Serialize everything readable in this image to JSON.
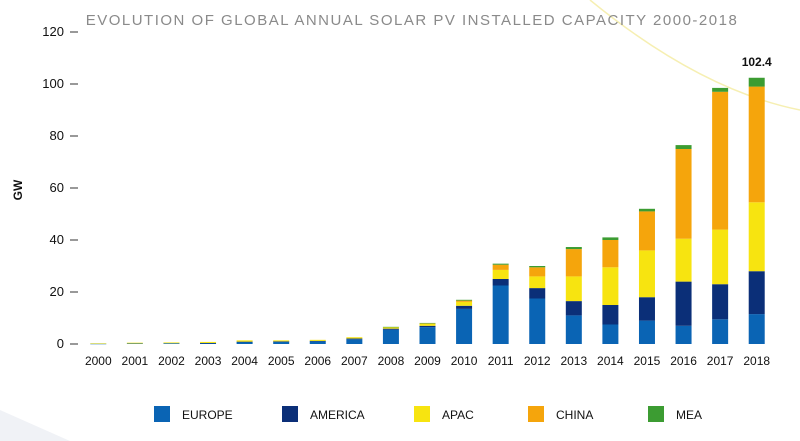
{
  "chart_data": {
    "type": "bar",
    "stacked": true,
    "title": "EVOLUTION OF GLOBAL ANNUAL SOLAR PV INSTALLED CAPACITY 2000-2018",
    "xlabel": "",
    "ylabel": "GW",
    "ylim": [
      0,
      120
    ],
    "yticks": [
      0,
      20,
      40,
      60,
      80,
      100,
      120
    ],
    "grid": false,
    "legend_position": "bottom",
    "categories": [
      "2000",
      "2001",
      "2002",
      "2003",
      "2004",
      "2005",
      "2006",
      "2007",
      "2008",
      "2009",
      "2010",
      "2011",
      "2012",
      "2013",
      "2014",
      "2015",
      "2016",
      "2017",
      "2018"
    ],
    "series": [
      {
        "name": "EUROPE",
        "color": "#0a64b4",
        "values": [
          0.1,
          0.2,
          0.3,
          0.3,
          0.8,
          0.9,
          1.0,
          1.8,
          5.5,
          6.5,
          13.5,
          22.5,
          17.5,
          11.0,
          7.5,
          9.0,
          7.0,
          9.5,
          11.5
        ]
      },
      {
        "name": "AMERICA",
        "color": "#0b2f78",
        "values": [
          0.0,
          0.0,
          0.0,
          0.1,
          0.1,
          0.1,
          0.2,
          0.3,
          0.4,
          0.5,
          1.2,
          2.5,
          4.0,
          5.5,
          7.5,
          9.0,
          17.0,
          13.5,
          16.5
        ]
      },
      {
        "name": "APAC",
        "color": "#f7e410",
        "values": [
          0.2,
          0.3,
          0.3,
          0.4,
          0.5,
          0.4,
          0.4,
          0.5,
          0.6,
          0.8,
          1.5,
          3.5,
          4.5,
          9.5,
          14.5,
          18.0,
          16.5,
          21.0,
          26.5
        ]
      },
      {
        "name": "CHINA",
        "color": "#f5a50c",
        "values": [
          0.0,
          0.0,
          0.0,
          0.0,
          0.0,
          0.0,
          0.0,
          0.0,
          0.0,
          0.2,
          0.5,
          2.0,
          3.5,
          10.5,
          10.5,
          15.0,
          34.5,
          53.0,
          44.5
        ]
      },
      {
        "name": "MEA",
        "color": "#3c9c32",
        "values": [
          0.0,
          0.0,
          0.0,
          0.0,
          0.0,
          0.0,
          0.0,
          0.0,
          0.1,
          0.1,
          0.3,
          0.4,
          0.5,
          0.8,
          1.0,
          1.0,
          1.5,
          1.5,
          3.4
        ]
      }
    ],
    "annotations": [
      {
        "category": "2018",
        "text": "102.4"
      }
    ]
  }
}
